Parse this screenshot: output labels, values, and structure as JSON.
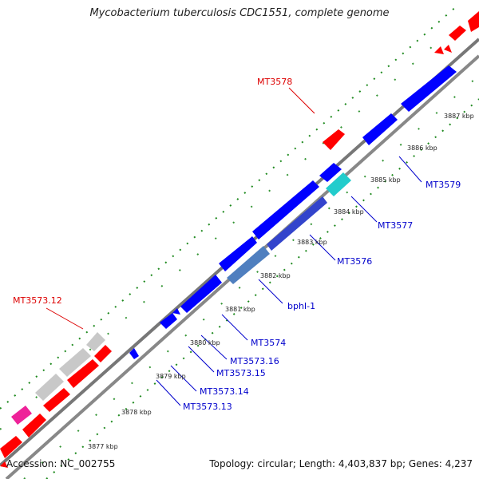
{
  "title": "Mycobacterium tuberculosis CDC1551, complete genome",
  "footer": {
    "accession": "Accession: NC_002755",
    "topology": "Topology: circular; Length: 4,403,837 bp; Genes: 4,237"
  },
  "colors": {
    "forward_gene": "#ff0000",
    "reverse_gene": "#0000ff",
    "grey_gene": "#c8c8c8",
    "magenta_gene": "#ee2299",
    "cyan_gene": "#22cccc",
    "steel_gene": "#4f7fbf",
    "backbone": "#888888",
    "tick": "#1f8a1f",
    "label_forward": "#dd0000",
    "label_reverse": "#0000cc"
  },
  "kbp_ticks": [
    "3877 kbp",
    "3878 kbp",
    "3879 kbp",
    "3880 kbp",
    "3881 kbp",
    "3882 kbp",
    "3883 kbp",
    "3884 kbp",
    "3885 kbp",
    "3886 kbp",
    "3887 kbp"
  ],
  "gene_labels": {
    "MT3578": "MT3578",
    "MT3573_12": "MT3573.12",
    "MT3579": "MT3579",
    "MT3577": "MT3577",
    "MT3576": "MT3576",
    "bphI_1": "bphI-1",
    "MT3574": "MT3574",
    "MT3573_16": "MT3573.16",
    "MT3573_15": "MT3573.15",
    "MT3573_14": "MT3573.14",
    "MT3573_13": "MT3573.13"
  }
}
